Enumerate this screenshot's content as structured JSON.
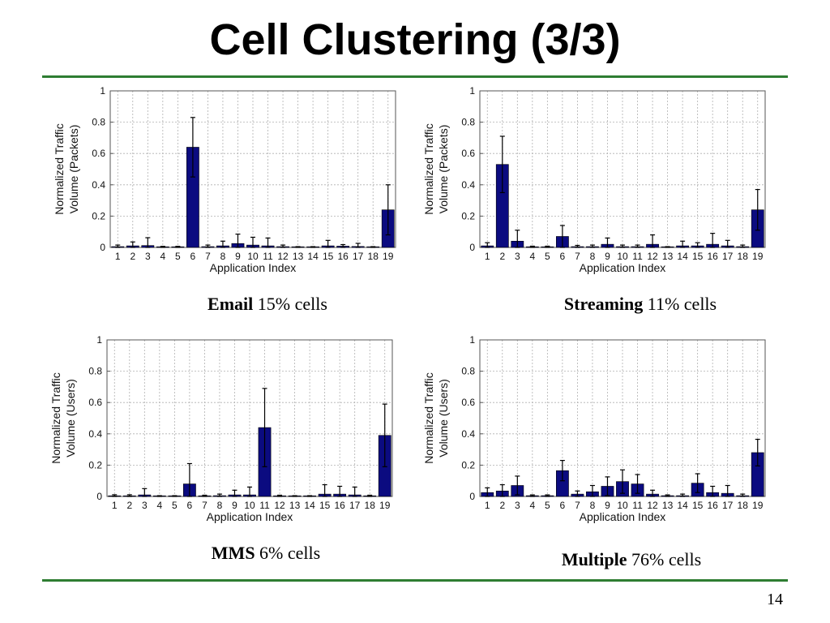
{
  "slide": {
    "title": "Cell Clustering (3/3)",
    "page_number": "14",
    "rule_color": "#2e7d32"
  },
  "captions": [
    {
      "name": "Email",
      "rest": " 15% cells"
    },
    {
      "name": "Streaming",
      "rest": " 11% cells"
    },
    {
      "name": "MMS",
      "rest": " 6% cells"
    },
    {
      "name": "Multiple",
      "rest": " 76% cells"
    }
  ],
  "style": {
    "bar_color": "#0b0b80",
    "grid_color": "#b0b0b0"
  },
  "chart_data": [
    {
      "type": "bar",
      "title": "",
      "xlabel": "Application Index",
      "ylabel": [
        "Normalized Traffic",
        "Volume (Packets)"
      ],
      "ylim": [
        0,
        1
      ],
      "yticks": [
        "0",
        "0.2",
        "0.4",
        "0.6",
        "0.8",
        "1"
      ],
      "grid": true,
      "categories": [
        "1",
        "2",
        "3",
        "4",
        "5",
        "6",
        "7",
        "8",
        "9",
        "10",
        "11",
        "12",
        "13",
        "14",
        "15",
        "16",
        "17",
        "18",
        "19"
      ],
      "values": [
        0.005,
        0.01,
        0.012,
        0.002,
        0.002,
        0.64,
        0.005,
        0.01,
        0.025,
        0.015,
        0.01,
        0.005,
        0.002,
        0.002,
        0.01,
        0.008,
        0.006,
        0.002,
        0.24
      ],
      "error": [
        0.01,
        0.025,
        0.05,
        0.005,
        0.005,
        0.19,
        0.01,
        0.03,
        0.06,
        0.05,
        0.05,
        0.01,
        0.003,
        0.003,
        0.035,
        0.01,
        0.02,
        0.003,
        0.16
      ]
    },
    {
      "type": "bar",
      "title": "",
      "xlabel": "Application Index",
      "ylabel": [
        "Normalized Traffic",
        "Volume (Packets)"
      ],
      "ylim": [
        0,
        1
      ],
      "yticks": [
        "0",
        "0.2",
        "0.4",
        "0.6",
        "0.8",
        "1"
      ],
      "grid": true,
      "categories": [
        "1",
        "2",
        "3",
        "4",
        "5",
        "6",
        "7",
        "8",
        "9",
        "10",
        "11",
        "12",
        "13",
        "14",
        "15",
        "16",
        "17",
        "18",
        "19"
      ],
      "values": [
        0.01,
        0.53,
        0.04,
        0.003,
        0.003,
        0.07,
        0.005,
        0.005,
        0.02,
        0.005,
        0.005,
        0.02,
        0.002,
        0.01,
        0.01,
        0.02,
        0.01,
        0.005,
        0.24
      ],
      "error": [
        0.02,
        0.18,
        0.07,
        0.005,
        0.005,
        0.07,
        0.008,
        0.01,
        0.04,
        0.01,
        0.01,
        0.06,
        0.003,
        0.03,
        0.02,
        0.07,
        0.035,
        0.01,
        0.13
      ]
    },
    {
      "type": "bar",
      "title": "",
      "xlabel": "Application Index",
      "ylabel": [
        "Normalized Traffic",
        "Volume (Users)"
      ],
      "ylim": [
        0,
        1
      ],
      "yticks": [
        "0",
        "0.2",
        "0.4",
        "0.6",
        "0.8",
        "1"
      ],
      "grid": true,
      "categories": [
        "1",
        "2",
        "3",
        "4",
        "5",
        "6",
        "7",
        "8",
        "9",
        "10",
        "11",
        "12",
        "13",
        "14",
        "15",
        "16",
        "17",
        "18",
        "19"
      ],
      "values": [
        0.003,
        0.003,
        0.01,
        0.002,
        0.002,
        0.08,
        0.003,
        0.005,
        0.01,
        0.01,
        0.44,
        0.003,
        0.002,
        0.002,
        0.015,
        0.015,
        0.01,
        0.003,
        0.39
      ],
      "error": [
        0.008,
        0.008,
        0.04,
        0.003,
        0.003,
        0.13,
        0.005,
        0.01,
        0.03,
        0.05,
        0.25,
        0.005,
        0.003,
        0.003,
        0.06,
        0.05,
        0.05,
        0.005,
        0.2
      ]
    },
    {
      "type": "bar",
      "title": "",
      "xlabel": "Application Index",
      "ylabel": [
        "Normalized Traffic",
        "Volume (Users)"
      ],
      "ylim": [
        0,
        1
      ],
      "yticks": [
        "0",
        "0.2",
        "0.4",
        "0.6",
        "0.8",
        "1"
      ],
      "grid": true,
      "categories": [
        "1",
        "2",
        "3",
        "4",
        "5",
        "6",
        "7",
        "8",
        "9",
        "10",
        "11",
        "12",
        "13",
        "14",
        "15",
        "16",
        "17",
        "18",
        "19"
      ],
      "values": [
        0.025,
        0.035,
        0.07,
        0.005,
        0.005,
        0.165,
        0.015,
        0.03,
        0.065,
        0.095,
        0.08,
        0.015,
        0.005,
        0.005,
        0.085,
        0.025,
        0.02,
        0.005,
        0.28
      ],
      "error": [
        0.03,
        0.04,
        0.06,
        0.005,
        0.005,
        0.065,
        0.02,
        0.04,
        0.06,
        0.075,
        0.06,
        0.025,
        0.005,
        0.01,
        0.06,
        0.04,
        0.05,
        0.01,
        0.085
      ]
    }
  ]
}
